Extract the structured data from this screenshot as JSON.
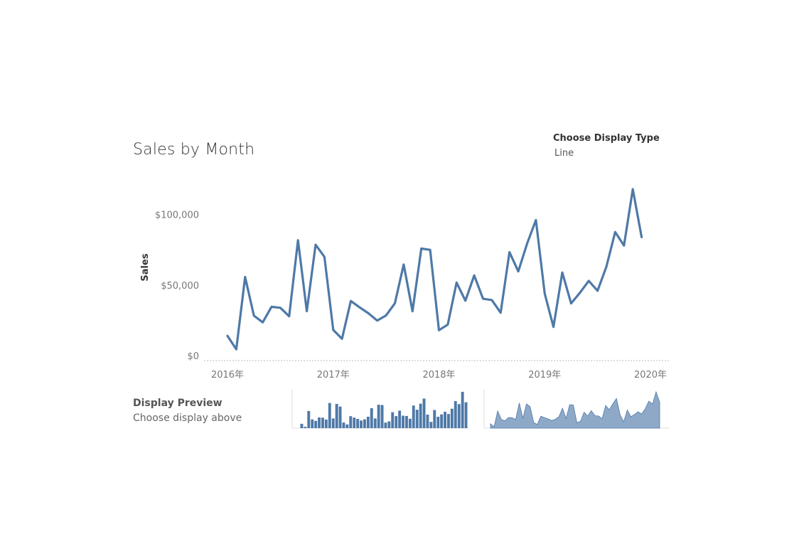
{
  "title": "Sales by Month",
  "control": {
    "label": "Choose Display Type",
    "value": "Line"
  },
  "preview": {
    "title": "Display Preview",
    "subtitle": "Choose display above"
  },
  "colors": {
    "line": "#4e79a7",
    "area": "#8ea9c8",
    "axis": "#cccccc",
    "text": "#777777"
  },
  "chart_data": {
    "type": "line",
    "ylabel": "Sales",
    "ylim": [
      0,
      120000
    ],
    "yticks": [
      {
        "value": 0,
        "label": "$0"
      },
      {
        "value": 50000,
        "label": "$50,000"
      },
      {
        "value": 100000,
        "label": "$100,000"
      }
    ],
    "xticks": [
      {
        "value": 0,
        "label": "2016年"
      },
      {
        "value": 12,
        "label": "2017年"
      },
      {
        "value": 24,
        "label": "2018年"
      },
      {
        "value": 36,
        "label": "2019年"
      },
      {
        "value": 48,
        "label": "2020年"
      }
    ],
    "x": [
      "2016-01",
      "2016-02",
      "2016-03",
      "2016-04",
      "2016-05",
      "2016-06",
      "2016-07",
      "2016-08",
      "2016-09",
      "2016-10",
      "2016-11",
      "2016-12",
      "2017-01",
      "2017-02",
      "2017-03",
      "2017-04",
      "2017-05",
      "2017-06",
      "2017-07",
      "2017-08",
      "2017-09",
      "2017-10",
      "2017-11",
      "2017-12",
      "2018-01",
      "2018-02",
      "2018-03",
      "2018-04",
      "2018-05",
      "2018-06",
      "2018-07",
      "2018-08",
      "2018-09",
      "2018-10",
      "2018-11",
      "2018-12",
      "2019-01",
      "2019-02",
      "2019-03",
      "2019-04",
      "2019-05",
      "2019-06",
      "2019-07",
      "2019-08",
      "2019-09",
      "2019-10",
      "2019-11",
      "2019-12"
    ],
    "values": [
      14000,
      4500,
      55700,
      28300,
      23600,
      34600,
      33900,
      27900,
      81800,
      31500,
      78600,
      70000,
      18200,
      11900,
      38700,
      34200,
      30000,
      24800,
      28500,
      37100,
      64600,
      31400,
      75900,
      75000,
      18000,
      22000,
      51800,
      38900,
      56800,
      40300,
      39400,
      30400,
      73300,
      59700,
      79400,
      96100,
      43900,
      20300,
      58900,
      37000,
      44500,
      53000,
      46000,
      63000,
      87600,
      78000,
      118000,
      84000
    ]
  }
}
